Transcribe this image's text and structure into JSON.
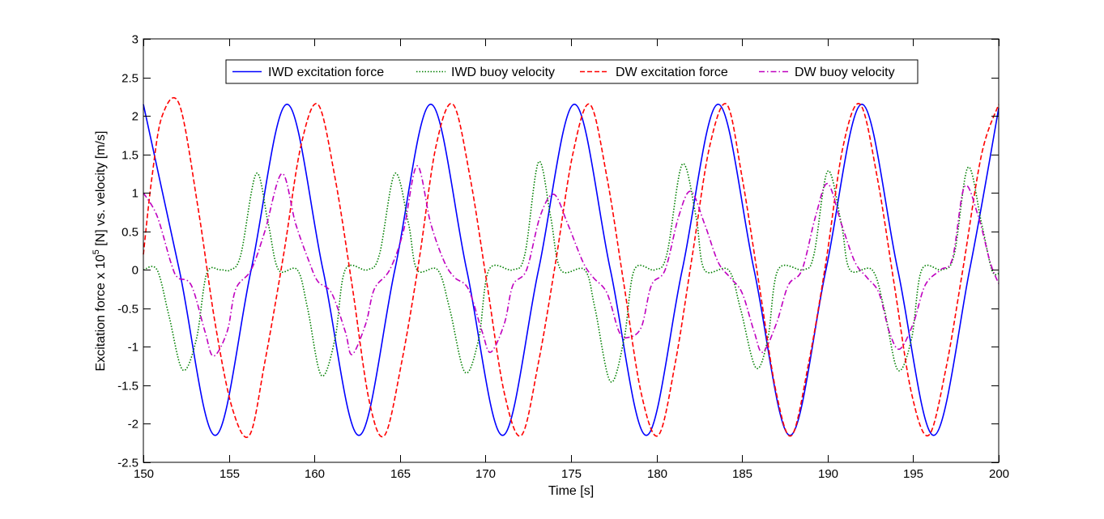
{
  "chart_data": {
    "type": "line",
    "title": "",
    "xlabel": "Time [s]",
    "ylabel": "Excitation force x 10^5 [N] vs. velocity [m/s]",
    "ylabel_parts": {
      "prefix": "Excitation force x 10",
      "superscript": "5",
      "suffix": " [N] vs. velocity [m/s]"
    },
    "xlim": [
      150,
      200
    ],
    "ylim": [
      -2.5,
      3
    ],
    "xticks": [
      150,
      155,
      160,
      165,
      170,
      175,
      180,
      185,
      190,
      195,
      200
    ],
    "yticks": [
      -2.5,
      -2,
      -1.5,
      -1,
      -0.5,
      0,
      0.5,
      1,
      1.5,
      2,
      2.5,
      3
    ],
    "grid": false,
    "legend_position": "top-center",
    "series": [
      {
        "name": "IWD excitation force",
        "color": "#0000ff",
        "style": "solid",
        "points": [
          [
            150,
            2.15
          ],
          [
            152.1,
            0
          ],
          [
            154.2,
            -2.15
          ],
          [
            156.3,
            0
          ],
          [
            158.4,
            2.15
          ],
          [
            160.5,
            0
          ],
          [
            162.6,
            -2.15
          ],
          [
            164.7,
            0
          ],
          [
            166.8,
            2.15
          ],
          [
            168.9,
            0
          ],
          [
            171.0,
            -2.15
          ],
          [
            173.1,
            0
          ],
          [
            175.2,
            2.15
          ],
          [
            177.3,
            0
          ],
          [
            179.4,
            -2.15
          ],
          [
            181.5,
            0
          ],
          [
            183.6,
            2.15
          ],
          [
            185.7,
            0
          ],
          [
            187.8,
            -2.15
          ],
          [
            189.9,
            0
          ],
          [
            192.0,
            2.15
          ],
          [
            194.1,
            0
          ],
          [
            196.2,
            -2.15
          ],
          [
            198.3,
            0
          ],
          [
            200,
            2.1
          ]
        ]
      },
      {
        "name": "IWD buoy velocity",
        "color": "#007f00",
        "style": "dotted",
        "points": [
          [
            150,
            0
          ],
          [
            150.8,
            0
          ],
          [
            151.5,
            -0.6
          ],
          [
            152.3,
            -1.3
          ],
          [
            153.1,
            -0.9
          ],
          [
            153.7,
            -0.05
          ],
          [
            154.5,
            0
          ],
          [
            155.1,
            0
          ],
          [
            155.7,
            0.2
          ],
          [
            156.6,
            1.25
          ],
          [
            157.3,
            0.6
          ],
          [
            157.9,
            0
          ],
          [
            159.0,
            0
          ],
          [
            159.6,
            -0.5
          ],
          [
            160.4,
            -1.37
          ],
          [
            161.2,
            -0.9
          ],
          [
            161.8,
            0
          ],
          [
            163.1,
            0
          ],
          [
            163.8,
            0.2
          ],
          [
            164.7,
            1.25
          ],
          [
            165.5,
            0.6
          ],
          [
            166.0,
            0
          ],
          [
            167.2,
            0
          ],
          [
            167.9,
            -0.5
          ],
          [
            168.8,
            -1.33
          ],
          [
            169.6,
            -0.9
          ],
          [
            170.2,
            0
          ],
          [
            171.6,
            0
          ],
          [
            172.3,
            0.2
          ],
          [
            173.1,
            1.4
          ],
          [
            173.8,
            0.7
          ],
          [
            174.4,
            0
          ],
          [
            175.8,
            0
          ],
          [
            176.4,
            -0.5
          ],
          [
            177.3,
            -1.45
          ],
          [
            178.1,
            -0.9
          ],
          [
            178.7,
            0
          ],
          [
            179.9,
            0
          ],
          [
            180.6,
            0.2
          ],
          [
            181.5,
            1.37
          ],
          [
            182.3,
            0.7
          ],
          [
            182.8,
            0
          ],
          [
            184.2,
            0
          ],
          [
            184.9,
            -0.5
          ],
          [
            185.8,
            -1.27
          ],
          [
            186.5,
            -0.9
          ],
          [
            187.1,
            0
          ],
          [
            188.6,
            0
          ],
          [
            189.2,
            0.2
          ],
          [
            190.0,
            1.28
          ],
          [
            190.8,
            0.6
          ],
          [
            191.3,
            0
          ],
          [
            192.6,
            0
          ],
          [
            193.3,
            -0.5
          ],
          [
            194.1,
            -1.3
          ],
          [
            194.9,
            -0.9
          ],
          [
            195.5,
            0
          ],
          [
            196.7,
            0
          ],
          [
            197.4,
            0.2
          ],
          [
            198.2,
            1.33
          ],
          [
            199.0,
            0.6
          ],
          [
            199.6,
            0
          ],
          [
            200,
            -0.05
          ]
        ]
      },
      {
        "name": "DW excitation force",
        "color": "#ff0000",
        "style": "dashed",
        "points": [
          [
            150,
            0.2
          ],
          [
            150.5,
            1.2
          ],
          [
            151.1,
            2.0
          ],
          [
            152.1,
            2.15
          ],
          [
            153.2,
            0.8
          ],
          [
            154.2,
            -0.7
          ],
          [
            155.2,
            -1.8
          ],
          [
            156.2,
            -2.15
          ],
          [
            157.1,
            -1.2
          ],
          [
            158.2,
            0.2
          ],
          [
            159.2,
            1.6
          ],
          [
            160.2,
            2.15
          ],
          [
            161.2,
            1.2
          ],
          [
            162.2,
            -0.2
          ],
          [
            163.2,
            -1.7
          ],
          [
            164.1,
            -2.15
          ],
          [
            165.1,
            -1.2
          ],
          [
            166.1,
            0.1
          ],
          [
            167.1,
            1.6
          ],
          [
            168.1,
            2.15
          ],
          [
            169.1,
            1.2
          ],
          [
            170.1,
            -0.2
          ],
          [
            171.1,
            -1.6
          ],
          [
            172.1,
            -2.15
          ],
          [
            173.1,
            -1.2
          ],
          [
            174.1,
            0.1
          ],
          [
            175.1,
            1.5
          ],
          [
            176.1,
            2.15
          ],
          [
            177.1,
            1.2
          ],
          [
            178.1,
            -0.2
          ],
          [
            179.1,
            -1.6
          ],
          [
            180.1,
            -2.15
          ],
          [
            181.1,
            -1.2
          ],
          [
            182.1,
            0.2
          ],
          [
            183.1,
            1.6
          ],
          [
            184.1,
            2.15
          ],
          [
            185.0,
            1.2
          ],
          [
            186.0,
            -0.2
          ],
          [
            187.0,
            -1.6
          ],
          [
            187.9,
            -2.15
          ],
          [
            188.9,
            -1.2
          ],
          [
            189.9,
            0.1
          ],
          [
            190.9,
            1.6
          ],
          [
            191.9,
            2.15
          ],
          [
            192.9,
            1.2
          ],
          [
            193.9,
            -0.2
          ],
          [
            194.9,
            -1.6
          ],
          [
            195.9,
            -2.15
          ],
          [
            196.9,
            -1.3
          ],
          [
            197.9,
            0
          ],
          [
            199.0,
            1.5
          ],
          [
            200,
            2.15
          ]
        ]
      },
      {
        "name": "DW buoy velocity",
        "color": "#bf00bf",
        "style": "dashdot",
        "points": [
          [
            150,
            1.0
          ],
          [
            150.8,
            0.7
          ],
          [
            151.6,
            0.1
          ],
          [
            152.0,
            -0.1
          ],
          [
            152.8,
            -0.2
          ],
          [
            153.6,
            -0.8
          ],
          [
            154.1,
            -1.12
          ],
          [
            154.9,
            -0.8
          ],
          [
            155.4,
            -0.25
          ],
          [
            156.3,
            0
          ],
          [
            157.1,
            0.5
          ],
          [
            158.1,
            1.25
          ],
          [
            158.9,
            0.6
          ],
          [
            159.7,
            0.1
          ],
          [
            160.2,
            -0.15
          ],
          [
            161.0,
            -0.3
          ],
          [
            161.8,
            -0.8
          ],
          [
            162.2,
            -1.1
          ],
          [
            163.0,
            -0.7
          ],
          [
            163.5,
            -0.25
          ],
          [
            164.4,
            0
          ],
          [
            165.2,
            0.5
          ],
          [
            166.0,
            1.35
          ],
          [
            166.8,
            0.6
          ],
          [
            167.6,
            0.1
          ],
          [
            168.2,
            -0.1
          ],
          [
            169.0,
            -0.25
          ],
          [
            169.8,
            -0.8
          ],
          [
            170.3,
            -1.07
          ],
          [
            171.1,
            -0.7
          ],
          [
            171.6,
            -0.2
          ],
          [
            172.4,
            0
          ],
          [
            173.2,
            0.7
          ],
          [
            174.0,
            0.98
          ],
          [
            174.8,
            0.6
          ],
          [
            175.7,
            0.1
          ],
          [
            176.3,
            -0.1
          ],
          [
            177.1,
            -0.3
          ],
          [
            177.8,
            -0.8
          ],
          [
            178.3,
            -0.88
          ],
          [
            179.1,
            -0.75
          ],
          [
            179.7,
            -0.2
          ],
          [
            180.5,
            0
          ],
          [
            181.3,
            0.7
          ],
          [
            182.0,
            1.02
          ],
          [
            182.8,
            0.6
          ],
          [
            183.6,
            0.1
          ],
          [
            184.3,
            -0.1
          ],
          [
            185.0,
            -0.3
          ],
          [
            185.7,
            -0.8
          ],
          [
            186.2,
            -1.07
          ],
          [
            187.0,
            -0.7
          ],
          [
            187.7,
            -0.2
          ],
          [
            188.5,
            0
          ],
          [
            189.3,
            0.7
          ],
          [
            190.0,
            1.12
          ],
          [
            190.8,
            0.6
          ],
          [
            191.6,
            0.1
          ],
          [
            192.3,
            -0.1
          ],
          [
            193.0,
            -0.3
          ],
          [
            193.6,
            -0.8
          ],
          [
            194.2,
            -1.03
          ],
          [
            195.0,
            -0.7
          ],
          [
            195.7,
            -0.2
          ],
          [
            196.6,
            0
          ],
          [
            197.3,
            0.15
          ],
          [
            198.0,
            1.08
          ],
          [
            198.8,
            0.7
          ],
          [
            199.5,
            0.1
          ],
          [
            200,
            -0.18
          ]
        ]
      }
    ]
  }
}
